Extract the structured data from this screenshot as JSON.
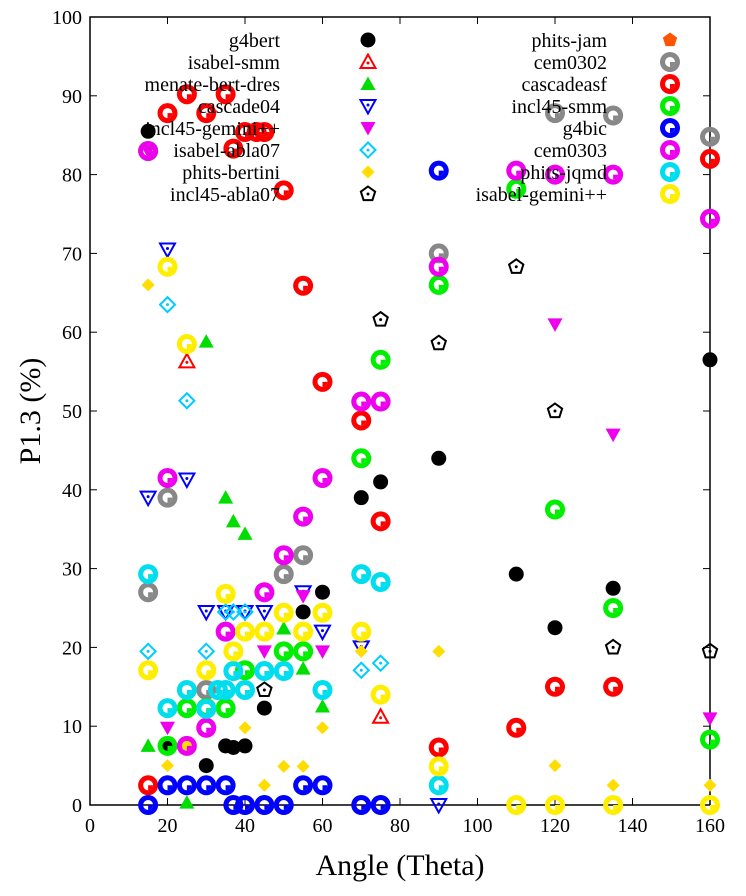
{
  "chart_data": {
    "type": "scatter",
    "xlabel": "Angle (Theta)",
    "ylabel": "P1.3 (%)",
    "xlim": [
      0,
      160
    ],
    "ylim": [
      0,
      100
    ],
    "xticks": [
      0,
      20,
      40,
      60,
      80,
      100,
      120,
      140,
      160
    ],
    "yticks": [
      0,
      10,
      20,
      30,
      40,
      50,
      60,
      70,
      80,
      90,
      100
    ],
    "grid": false,
    "legend_position": "top",
    "series": [
      {
        "name": "g4bert",
        "marker": "circle-filled",
        "color": "#000000",
        "x": [
          15,
          20,
          30,
          35,
          37,
          40,
          45,
          55,
          60,
          70,
          75,
          90,
          110,
          120,
          135,
          160
        ],
        "y": [
          85.5,
          7.5,
          5,
          7.5,
          7.3,
          7.5,
          12.3,
          24.5,
          27,
          39,
          41,
          44,
          29.3,
          22.5,
          27.5,
          56.5
        ]
      },
      {
        "name": "isabel-smm",
        "marker": "triangle-open",
        "color": "#ff0000",
        "x": [
          25,
          75
        ],
        "y": [
          56.3,
          11.2
        ]
      },
      {
        "name": "menate-bert-dres",
        "marker": "triangle-filled",
        "color": "#00dd00",
        "x": [
          15,
          25,
          30,
          35,
          37,
          40,
          50,
          55,
          60
        ],
        "y": [
          7.5,
          0.3,
          58.8,
          39,
          36,
          34.4,
          22.4,
          17.3,
          12.5
        ]
      },
      {
        "name": "cascade04",
        "marker": "triangle-down-open",
        "color": "#0000ff",
        "x": [
          15,
          20,
          25,
          30,
          35,
          40,
          45,
          55,
          60,
          70,
          90
        ],
        "y": [
          39,
          70.5,
          41.3,
          24.5,
          24.5,
          24.5,
          24.5,
          27,
          22,
          20,
          0
        ]
      },
      {
        "name": "incl45-gemini++",
        "marker": "triangle-down-filled",
        "color": "#ee00ee",
        "x": [
          15,
          20,
          45,
          55,
          60,
          120,
          135,
          160
        ],
        "y": [
          83,
          9.8,
          19.5,
          26.5,
          19.5,
          61,
          47,
          11
        ]
      },
      {
        "name": "isabel-abla07",
        "marker": "diamond-open",
        "color": "#00ccff",
        "x": [
          15,
          20,
          25,
          30,
          35,
          37,
          40,
          70,
          75
        ],
        "y": [
          19.5,
          63.5,
          51.3,
          19.5,
          24.5,
          24.5,
          24.5,
          17.1,
          18
        ]
      },
      {
        "name": "phits-bertini",
        "marker": "diamond-filled",
        "color": "#ffdd00",
        "x": [
          15,
          20,
          25,
          40,
          45,
          50,
          55,
          60,
          70,
          90,
          120,
          135,
          160
        ],
        "y": [
          66,
          5,
          7.5,
          9.8,
          2.5,
          4.9,
          4.9,
          9.8,
          19.5,
          19.5,
          5,
          2.5,
          2.5
        ]
      },
      {
        "name": "incl45-abla07",
        "marker": "pentagon-open",
        "color": "#000000",
        "x": [
          45,
          75,
          90,
          110,
          120,
          135,
          160
        ],
        "y": [
          14.6,
          61.6,
          58.6,
          68.3,
          50,
          20,
          19.5
        ]
      },
      {
        "name": "phits-jam",
        "marker": "pentagon-filled",
        "color": "#ff5500",
        "x": [],
        "y": []
      },
      {
        "name": "cem0302",
        "marker": "ring-gray",
        "color": "#888888",
        "x": [
          15,
          20,
          30,
          50,
          55,
          90,
          120,
          135,
          160
        ],
        "y": [
          27,
          39,
          14.6,
          29.3,
          31.7,
          70,
          87.8,
          87.5,
          84.8
        ]
      },
      {
        "name": "cascadeasf",
        "marker": "ring-red",
        "color": "#ff0000",
        "x": [
          15,
          20,
          25,
          30,
          35,
          37,
          40,
          43,
          45,
          50,
          55,
          60,
          70,
          75,
          90,
          110,
          120,
          135,
          160
        ],
        "y": [
          2.5,
          87.8,
          90.2,
          87.8,
          90.2,
          83.3,
          85.4,
          85.4,
          85.4,
          78,
          65.9,
          53.7,
          48.8,
          36,
          7.3,
          9.8,
          15,
          15,
          82
        ]
      },
      {
        "name": "incl45-smm",
        "marker": "ring-green",
        "color": "#00ee00",
        "x": [
          15,
          20,
          25,
          30,
          35,
          40,
          50,
          55,
          70,
          75,
          90,
          110,
          120,
          135,
          160
        ],
        "y": [
          83,
          7.5,
          12.3,
          12.3,
          12.3,
          17.1,
          19.5,
          19.5,
          44,
          56.5,
          66,
          78.2,
          37.5,
          25,
          8.3
        ]
      },
      {
        "name": "g4bic",
        "marker": "ring-blue",
        "color": "#0000ff",
        "x": [
          15,
          20,
          25,
          30,
          35,
          37,
          40,
          45,
          50,
          55,
          60,
          70,
          75,
          90
        ],
        "y": [
          0,
          2.5,
          2.5,
          2.5,
          2.5,
          0,
          0,
          0,
          0,
          2.5,
          2.5,
          0,
          0,
          80.5
        ]
      },
      {
        "name": "cem0303",
        "marker": "ring-magenta",
        "color": "#ee00ee",
        "x": [
          15,
          20,
          25,
          30,
          35,
          45,
          50,
          55,
          60,
          70,
          75,
          90,
          110,
          120,
          135,
          160
        ],
        "y": [
          83,
          41.5,
          7.5,
          9.8,
          22,
          27,
          31.7,
          36.6,
          41.5,
          51.2,
          51.2,
          68.3,
          80.5,
          80,
          80,
          74.4
        ]
      },
      {
        "name": "phits-jqmd",
        "marker": "ring-cyan",
        "color": "#00ddee",
        "x": [
          15,
          20,
          25,
          30,
          33,
          35,
          37,
          40,
          45,
          50,
          60,
          70,
          75,
          90
        ],
        "y": [
          29.3,
          12.3,
          14.6,
          12.2,
          14.6,
          14.6,
          17,
          14.6,
          17,
          17,
          14.6,
          29.3,
          28.3,
          2.5
        ]
      },
      {
        "name": "isabel-gemini++",
        "marker": "ring-yellow",
        "color": "#ffee00",
        "x": [
          15,
          20,
          25,
          30,
          35,
          37,
          40,
          45,
          50,
          55,
          60,
          70,
          75,
          90,
          110,
          120,
          135,
          160
        ],
        "y": [
          17.1,
          68.3,
          58.5,
          17.1,
          26.8,
          19.5,
          22,
          22,
          24.4,
          22,
          24.4,
          22,
          14,
          4.9,
          0,
          0,
          0,
          0
        ]
      }
    ]
  }
}
